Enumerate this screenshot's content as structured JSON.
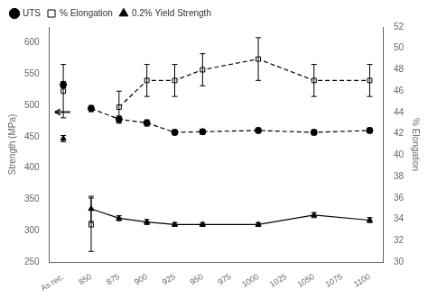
{
  "chart_data": {
    "type": "line",
    "color": "black",
    "categories": [
      "As rec.",
      "850",
      "875",
      "900",
      "925",
      "950",
      "975",
      "1000",
      "1025",
      "1050",
      "1075",
      "1100"
    ],
    "ylabel": "Strength (MPa)",
    "y2label": "% Elongation",
    "ylim": [
      250,
      625
    ],
    "yticks": [
      250,
      300,
      350,
      400,
      450,
      500,
      550,
      600
    ],
    "y2lim": [
      30,
      52
    ],
    "y2ticks": [
      30,
      32,
      34,
      36,
      38,
      40,
      42,
      44,
      46,
      48,
      50,
      52
    ],
    "grid": false,
    "legend": "upper left",
    "annotations": [
      {
        "type": "arrow",
        "y": 490
      },
      {
        "type": "arrow",
        "y": 44,
        "axis": "y2"
      }
    ],
    "series": [
      {
        "values": [
          533,
          null,
          null,
          null,
          null,
          null,
          null,
          null,
          null,
          null,
          null,
          null
        ],
        "errors": [
          5,
          null,
          null,
          null,
          null,
          null,
          null,
          null,
          null,
          null,
          null,
          null
        ],
        "marker": "circle",
        "line_style": "none"
      },
      {
        "name": "UTS",
        "values": [
          null,
          495,
          478,
          472,
          457,
          458,
          null,
          460,
          null,
          457,
          null,
          460
        ],
        "errors": [
          null,
          5,
          5,
          5,
          4,
          4,
          null,
          4,
          null,
          4,
          null,
          4
        ],
        "marker": "circle",
        "line_style": "dashed"
      },
      {
        "axis": "y2",
        "values": [
          46,
          33.5,
          null,
          null,
          null,
          null,
          null,
          null,
          null,
          null,
          null,
          null
        ],
        "errors": [
          2.5,
          2.5,
          null,
          null,
          null,
          null,
          null,
          null,
          null,
          null,
          null,
          null
        ],
        "marker": "open square",
        "line_style": "none"
      },
      {
        "name": "% Elongation",
        "axis": "y2",
        "values": [
          null,
          null,
          44.5,
          47,
          47,
          48,
          null,
          49,
          null,
          47,
          null,
          47
        ],
        "errors": [
          null,
          null,
          1.5,
          1.5,
          1.5,
          1.5,
          null,
          2,
          null,
          1.5,
          null,
          1.5
        ],
        "marker": "open square",
        "line_style": "dashed"
      },
      {
        "values": [
          447,
          null,
          null,
          null,
          null,
          null,
          null,
          null,
          null,
          null,
          null,
          null
        ],
        "errors": [
          5,
          null,
          null,
          null,
          null,
          null,
          null,
          null,
          null,
          null,
          null,
          null
        ],
        "marker": "triangle",
        "line_style": "none"
      },
      {
        "name": "0.2% Yield Strength",
        "values": [
          null,
          335,
          320,
          314,
          310,
          310,
          null,
          310,
          null,
          325,
          null,
          317
        ],
        "errors": [
          null,
          20,
          4,
          4,
          3,
          3,
          null,
          3,
          null,
          4,
          null,
          4
        ],
        "marker": "triangle",
        "line_style": "solid"
      }
    ]
  }
}
